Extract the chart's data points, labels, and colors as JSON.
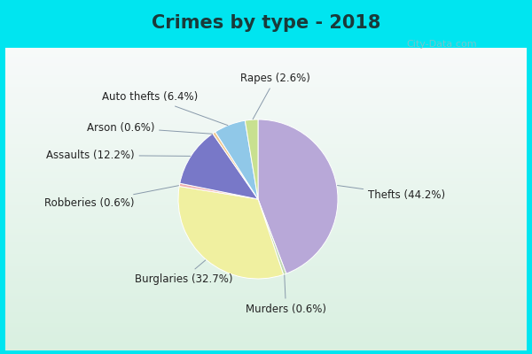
{
  "title": "Crimes by type - 2018",
  "slices": [
    {
      "label": "Thefts",
      "pct": 44.2,
      "color": "#b8a8d8"
    },
    {
      "label": "Murders",
      "pct": 0.6,
      "color": "#c0d8b0"
    },
    {
      "label": "Burglaries",
      "pct": 32.7,
      "color": "#f0f0a0"
    },
    {
      "label": "Robberies",
      "pct": 0.6,
      "color": "#f0b0b0"
    },
    {
      "label": "Assaults",
      "pct": 12.2,
      "color": "#7878c8"
    },
    {
      "label": "Arson",
      "pct": 0.6,
      "color": "#f0c890"
    },
    {
      "label": "Auto thefts",
      "pct": 6.4,
      "color": "#90c8e8"
    },
    {
      "label": "Rapes",
      "pct": 2.6,
      "color": "#c8e090"
    }
  ],
  "bg_cyan": "#00e5f0",
  "bg_inner_top": "#d0ece0",
  "bg_inner_bot": "#e8f8f0",
  "title_fontsize": 15,
  "label_fontsize": 8.5,
  "watermark": "City-Data.com",
  "label_configs": [
    {
      "ha": "left",
      "xt": 1.38,
      "yt": 0.05
    },
    {
      "ha": "center",
      "xt": 0.35,
      "yt": -1.38
    },
    {
      "ha": "left",
      "xt": -1.55,
      "yt": -1.0
    },
    {
      "ha": "right",
      "xt": -1.55,
      "yt": -0.05
    },
    {
      "ha": "right",
      "xt": -1.55,
      "yt": 0.55
    },
    {
      "ha": "right",
      "xt": -1.3,
      "yt": 0.9
    },
    {
      "ha": "right",
      "xt": -0.75,
      "yt": 1.28
    },
    {
      "ha": "center",
      "xt": 0.22,
      "yt": 1.52
    }
  ]
}
